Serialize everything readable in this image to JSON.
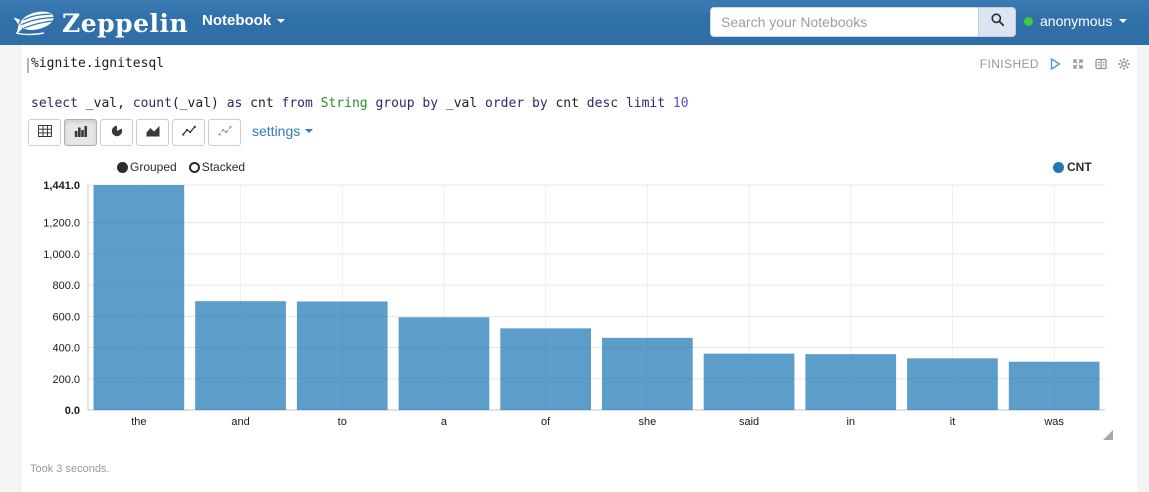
{
  "navbar": {
    "brand": "Zeppelin",
    "notebook_menu": "Notebook",
    "search_placeholder": "Search your Notebooks",
    "user": "anonymous",
    "user_status_color": "#3fca3f",
    "bg_color": "#3071a9"
  },
  "paragraph": {
    "status": "FINISHED",
    "code": {
      "line1": "%ignite.ignitesql",
      "sql_tokens": [
        {
          "t": "select",
          "c": "keyword"
        },
        {
          "t": " _val, ",
          "c": "plain"
        },
        {
          "t": "count",
          "c": "keyword"
        },
        {
          "t": "(_val) ",
          "c": "plain"
        },
        {
          "t": "as",
          "c": "keyword"
        },
        {
          "t": " cnt ",
          "c": "plain"
        },
        {
          "t": "from",
          "c": "keyword"
        },
        {
          "t": " ",
          "c": "plain"
        },
        {
          "t": "String",
          "c": "type"
        },
        {
          "t": " ",
          "c": "plain"
        },
        {
          "t": "group",
          "c": "keyword"
        },
        {
          "t": " ",
          "c": "plain"
        },
        {
          "t": "by",
          "c": "keyword"
        },
        {
          "t": " _val ",
          "c": "plain"
        },
        {
          "t": "order",
          "c": "keyword"
        },
        {
          "t": " ",
          "c": "plain"
        },
        {
          "t": "by",
          "c": "keyword"
        },
        {
          "t": " cnt ",
          "c": "plain"
        },
        {
          "t": "desc",
          "c": "keyword"
        },
        {
          "t": " ",
          "c": "plain"
        },
        {
          "t": "limit",
          "c": "keyword"
        },
        {
          "t": " ",
          "c": "plain"
        },
        {
          "t": "10",
          "c": "number"
        }
      ]
    },
    "toolbar": {
      "chart_types": [
        "table",
        "bar",
        "pie",
        "area",
        "line",
        "scatter"
      ],
      "selected_type": "bar",
      "settings_label": "settings"
    },
    "footer": "Took 3 seconds."
  },
  "chart_data": {
    "type": "bar",
    "title": "",
    "categories": [
      "the",
      "and",
      "to",
      "a",
      "of",
      "she",
      "said",
      "in",
      "it",
      "was"
    ],
    "series": [
      {
        "name": "CNT",
        "color": "#1f77b4",
        "values": [
          1441,
          697,
          695,
          594,
          523,
          462,
          361,
          358,
          331,
          309
        ]
      }
    ],
    "ylim": [
      0,
      1441
    ],
    "yticks": [
      {
        "value": 0,
        "label": "0.0",
        "bold": true
      },
      {
        "value": 200,
        "label": "200.0"
      },
      {
        "value": 400,
        "label": "400.0"
      },
      {
        "value": 600,
        "label": "600.0"
      },
      {
        "value": 800,
        "label": "800.0"
      },
      {
        "value": 1000,
        "label": "1,000.0"
      },
      {
        "value": 1200,
        "label": "1,200.0"
      },
      {
        "value": 1441,
        "label": "1,441.0",
        "bold": true
      }
    ],
    "mode_controls": [
      {
        "label": "Grouped",
        "selected": true
      },
      {
        "label": "Stacked",
        "selected": false
      }
    ],
    "legend_position": "top-right",
    "grid": true
  },
  "icons": {
    "brand_logo": "zeppelin-blimp-icon",
    "search": "search-icon",
    "status_icons": [
      "play-icon",
      "resize-icon",
      "book-icon",
      "gear-icon"
    ],
    "chart_type_icons": [
      "table-icon",
      "bar-chart-icon",
      "pie-chart-icon",
      "area-chart-icon",
      "line-chart-icon",
      "scatter-chart-icon"
    ]
  }
}
